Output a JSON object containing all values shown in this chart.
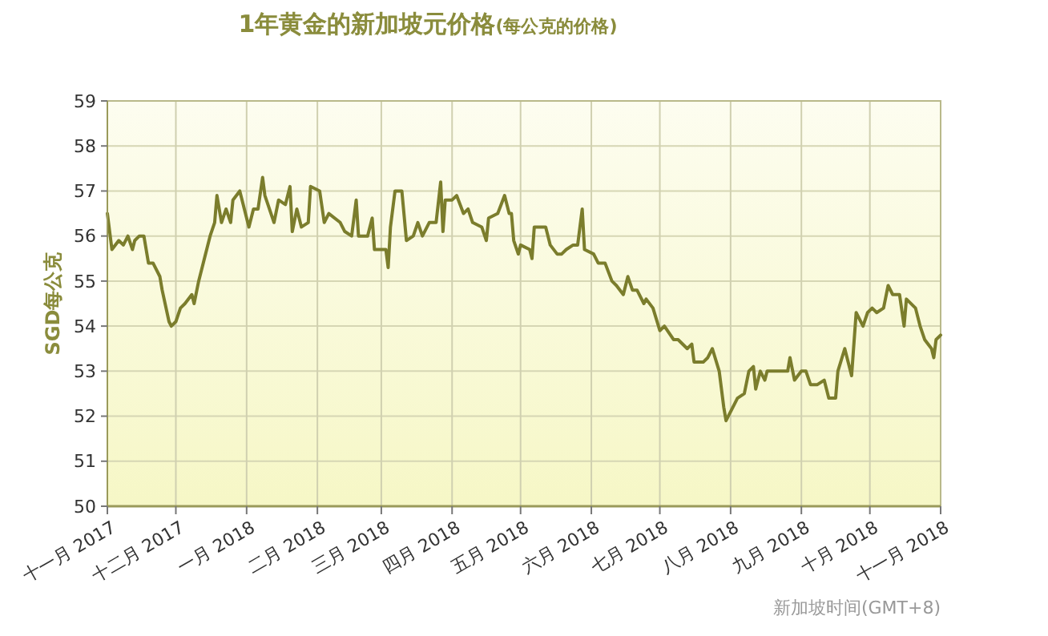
{
  "chart_data": {
    "type": "line",
    "title": "1年黄金的新加坡元价格",
    "subtitle": "(每公克的价格)",
    "ylabel": "SGD每公克",
    "annotations": [
      "新加坡时间(GMT+8)"
    ],
    "xlim": [
      "2017-11-01",
      "2018-11-01"
    ],
    "xticks": [
      {
        "value": "2017-11-01",
        "label": "十一月 2017"
      },
      {
        "value": "2017-12-01",
        "label": "十二月 2017"
      },
      {
        "value": "2018-01-01",
        "label": "一月 2018"
      },
      {
        "value": "2018-02-01",
        "label": "二月 2018"
      },
      {
        "value": "2018-03-01",
        "label": "三月 2018"
      },
      {
        "value": "2018-04-01",
        "label": "四月 2018"
      },
      {
        "value": "2018-05-01",
        "label": "五月 2018"
      },
      {
        "value": "2018-06-01",
        "label": "六月 2018"
      },
      {
        "value": "2018-07-01",
        "label": "七月 2018"
      },
      {
        "value": "2018-08-01",
        "label": "八月 2018"
      },
      {
        "value": "2018-09-01",
        "label": "九月 2018"
      },
      {
        "value": "2018-10-01",
        "label": "十月 2018"
      },
      {
        "value": "2018-11-01",
        "label": "十一月 2018"
      }
    ],
    "ylim": [
      50,
      59
    ],
    "yticks": [
      50,
      51,
      52,
      53,
      54,
      55,
      56,
      57,
      58,
      59
    ],
    "grid": true,
    "marker": "none",
    "line_style": "solid",
    "series": [
      {
        "color": "#7b7d2c",
        "x": [
          "2017-11-01",
          "2017-11-03",
          "2017-11-06",
          "2017-11-08",
          "2017-11-10",
          "2017-11-12",
          "2017-11-13",
          "2017-11-15",
          "2017-11-17",
          "2017-11-19",
          "2017-11-21",
          "2017-11-24",
          "2017-11-25",
          "2017-11-28",
          "2017-11-29",
          "2017-12-01",
          "2017-12-03",
          "2017-12-05",
          "2017-12-08",
          "2017-12-09",
          "2017-12-11",
          "2017-12-13",
          "2017-12-16",
          "2017-12-18",
          "2017-12-19",
          "2017-12-21",
          "2017-12-23",
          "2017-12-25",
          "2017-12-26",
          "2017-12-29",
          "2017-12-31",
          "2018-01-02",
          "2018-01-04",
          "2018-01-06",
          "2018-01-08",
          "2018-01-09",
          "2018-01-13",
          "2018-01-15",
          "2018-01-18",
          "2018-01-20",
          "2018-01-21",
          "2018-01-23",
          "2018-01-25",
          "2018-01-28",
          "2018-01-29",
          "2018-02-02",
          "2018-02-04",
          "2018-02-06",
          "2018-02-11",
          "2018-02-13",
          "2018-02-16",
          "2018-02-18",
          "2018-02-19",
          "2018-02-23",
          "2018-02-25",
          "2018-02-26",
          "2018-03-01",
          "2018-03-03",
          "2018-03-04",
          "2018-03-05",
          "2018-03-07",
          "2018-03-10",
          "2018-03-12",
          "2018-03-15",
          "2018-03-17",
          "2018-03-19",
          "2018-03-22",
          "2018-03-25",
          "2018-03-27",
          "2018-03-28",
          "2018-03-29",
          "2018-04-01",
          "2018-04-03",
          "2018-04-06",
          "2018-04-08",
          "2018-04-10",
          "2018-04-14",
          "2018-04-16",
          "2018-04-17",
          "2018-04-21",
          "2018-04-24",
          "2018-04-26",
          "2018-04-27",
          "2018-04-28",
          "2018-04-30",
          "2018-05-01",
          "2018-05-05",
          "2018-05-06",
          "2018-05-07",
          "2018-05-10",
          "2018-05-12",
          "2018-05-14",
          "2018-05-17",
          "2018-05-19",
          "2018-05-21",
          "2018-05-24",
          "2018-05-26",
          "2018-05-28",
          "2018-05-29",
          "2018-06-02",
          "2018-06-04",
          "2018-06-07",
          "2018-06-10",
          "2018-06-12",
          "2018-06-15",
          "2018-06-17",
          "2018-06-19",
          "2018-06-21",
          "2018-06-24",
          "2018-06-25",
          "2018-06-28",
          "2018-07-01",
          "2018-07-03",
          "2018-07-07",
          "2018-07-09",
          "2018-07-13",
          "2018-07-15",
          "2018-07-16",
          "2018-07-20",
          "2018-07-22",
          "2018-07-24",
          "2018-07-27",
          "2018-07-29",
          "2018-07-30",
          "2018-08-02",
          "2018-08-04",
          "2018-08-07",
          "2018-08-09",
          "2018-08-11",
          "2018-08-12",
          "2018-08-14",
          "2018-08-16",
          "2018-08-17",
          "2018-08-20",
          "2018-08-22",
          "2018-08-26",
          "2018-08-27",
          "2018-08-29",
          "2018-09-01",
          "2018-09-03",
          "2018-09-05",
          "2018-09-08",
          "2018-09-11",
          "2018-09-13",
          "2018-09-16",
          "2018-09-17",
          "2018-09-20",
          "2018-09-23",
          "2018-09-25",
          "2018-09-28",
          "2018-09-30",
          "2018-10-02",
          "2018-10-04",
          "2018-10-07",
          "2018-10-09",
          "2018-10-11",
          "2018-10-14",
          "2018-10-16",
          "2018-10-17",
          "2018-10-21",
          "2018-10-23",
          "2018-10-25",
          "2018-10-28",
          "2018-10-29",
          "2018-10-30",
          "2018-11-01"
        ],
        "values": [
          56.5,
          55.7,
          55.9,
          55.8,
          56.0,
          55.7,
          55.9,
          56.0,
          56.0,
          55.4,
          55.4,
          55.1,
          54.8,
          54.1,
          54.0,
          54.1,
          54.4,
          54.5,
          54.7,
          54.5,
          55.0,
          55.4,
          56.0,
          56.3,
          56.9,
          56.3,
          56.6,
          56.3,
          56.8,
          57.0,
          56.6,
          56.2,
          56.6,
          56.6,
          57.3,
          56.9,
          56.3,
          56.8,
          56.7,
          57.1,
          56.1,
          56.6,
          56.2,
          56.3,
          57.1,
          57.0,
          56.3,
          56.5,
          56.3,
          56.1,
          56.0,
          56.8,
          56.0,
          56.0,
          56.4,
          55.7,
          55.7,
          55.7,
          55.3,
          56.2,
          57.0,
          57.0,
          55.9,
          56.0,
          56.3,
          56.0,
          56.3,
          56.3,
          57.2,
          56.1,
          56.8,
          56.8,
          56.9,
          56.5,
          56.6,
          56.3,
          56.2,
          55.9,
          56.4,
          56.5,
          56.9,
          56.5,
          56.5,
          55.9,
          55.6,
          55.8,
          55.7,
          55.5,
          56.2,
          56.2,
          56.2,
          55.8,
          55.6,
          55.6,
          55.7,
          55.8,
          55.8,
          56.6,
          55.7,
          55.6,
          55.4,
          55.4,
          55.0,
          54.9,
          54.7,
          55.1,
          54.8,
          54.8,
          54.5,
          54.6,
          54.4,
          53.9,
          54.0,
          53.7,
          53.7,
          53.5,
          53.6,
          53.2,
          53.2,
          53.3,
          53.5,
          53.0,
          52.2,
          51.9,
          52.2,
          52.4,
          52.5,
          53.0,
          53.1,
          52.6,
          53.0,
          52.8,
          53.0,
          53.0,
          53.0,
          53.0,
          53.3,
          52.8,
          53.0,
          53.0,
          52.7,
          52.7,
          52.8,
          52.4,
          52.4,
          53.0,
          53.5,
          52.9,
          54.3,
          54.0,
          54.3,
          54.4,
          54.3,
          54.4,
          54.9,
          54.7,
          54.7,
          54.0,
          54.6,
          54.4,
          54.0,
          53.7,
          53.5,
          53.3,
          53.7,
          53.8
        ]
      }
    ]
  }
}
